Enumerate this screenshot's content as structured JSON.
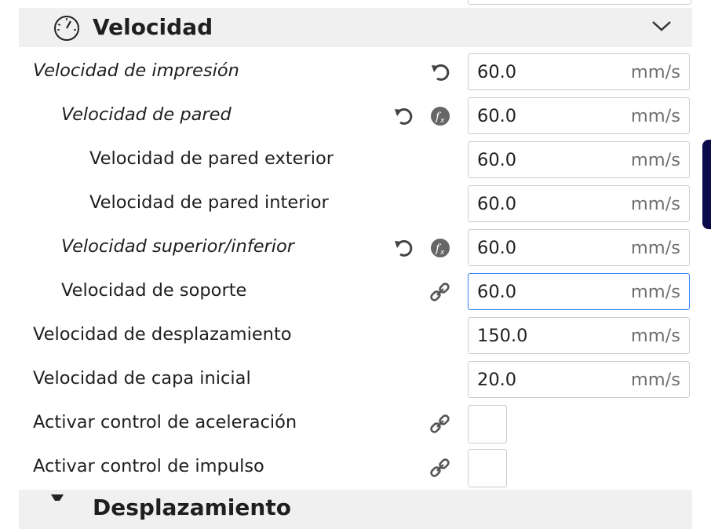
{
  "category": {
    "title": "Velocidad",
    "icon": "speedometer-icon"
  },
  "next_category": {
    "title": "Desplazamiento",
    "icon": "travel-icon"
  },
  "settings": [
    {
      "label": "Velocidad de impresión",
      "value": "60.0",
      "unit": "mm/s",
      "italic": true,
      "level": 0,
      "icons": [
        "reset"
      ]
    },
    {
      "label": "Velocidad de pared",
      "value": "60.0",
      "unit": "mm/s",
      "italic": true,
      "level": 1,
      "icons": [
        "reset",
        "function"
      ]
    },
    {
      "label": "Velocidad de pared exterior",
      "value": "60.0",
      "unit": "mm/s",
      "italic": false,
      "level": 2,
      "icons": []
    },
    {
      "label": "Velocidad de pared interior",
      "value": "60.0",
      "unit": "mm/s",
      "italic": false,
      "level": 2,
      "icons": []
    },
    {
      "label": "Velocidad superior/inferior",
      "value": "60.0",
      "unit": "mm/s",
      "italic": true,
      "level": 1,
      "icons": [
        "reset",
        "function"
      ]
    },
    {
      "label": "Velocidad de soporte",
      "value": "60.0",
      "unit": "mm/s",
      "italic": false,
      "level": 1,
      "icons": [
        "link"
      ],
      "focused": true
    },
    {
      "label": "Velocidad de desplazamiento",
      "value": "150.0",
      "unit": "mm/s",
      "italic": false,
      "level": 0,
      "icons": []
    },
    {
      "label": "Velocidad de capa inicial",
      "value": "20.0",
      "unit": "mm/s",
      "italic": false,
      "level": 0,
      "icons": []
    },
    {
      "label": "Activar control de aceleración",
      "checkbox": true,
      "checked": false,
      "level": 0,
      "icons": [
        "link"
      ]
    },
    {
      "label": "Activar control de impulso",
      "checkbox": true,
      "checked": false,
      "level": 0,
      "icons": [
        "link"
      ]
    }
  ],
  "colors": {
    "accent": "#3282f5",
    "header_bg": "#f0f0f0",
    "side_tab": "#0b0b4a"
  }
}
